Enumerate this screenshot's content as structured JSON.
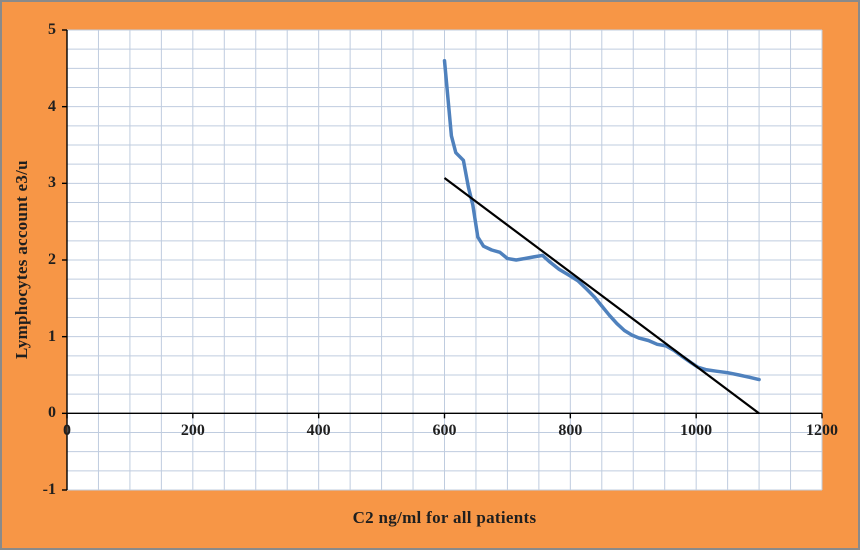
{
  "chart_data": {
    "type": "line",
    "title": "",
    "xlabel": "C2 ng/ml for all patients",
    "ylabel": "Lymphocytes account e3/u",
    "xlim": [
      0,
      1200
    ],
    "ylim": [
      -1,
      5
    ],
    "xticks": [
      0,
      200,
      400,
      600,
      800,
      1000,
      1200
    ],
    "yticks": [
      -1,
      0,
      1,
      2,
      3,
      4,
      5
    ],
    "minor_grid": {
      "x_step": 50,
      "y_step": 0.25
    },
    "grid": true,
    "legend": "none",
    "series": [
      {
        "name": "lymphocytes-count-vs-c2",
        "color": "#4F81BD",
        "width": 3.5,
        "points": [
          [
            600,
            4.6
          ],
          [
            611,
            3.62
          ],
          [
            618,
            3.4
          ],
          [
            630,
            3.3
          ],
          [
            638,
            2.95
          ],
          [
            645,
            2.72
          ],
          [
            653,
            2.3
          ],
          [
            662,
            2.18
          ],
          [
            675,
            2.13
          ],
          [
            688,
            2.1
          ],
          [
            700,
            2.02
          ],
          [
            714,
            2.0
          ],
          [
            728,
            2.02
          ],
          [
            742,
            2.04
          ],
          [
            756,
            2.06
          ],
          [
            768,
            1.97
          ],
          [
            782,
            1.88
          ],
          [
            798,
            1.8
          ],
          [
            812,
            1.73
          ],
          [
            826,
            1.62
          ],
          [
            838,
            1.52
          ],
          [
            850,
            1.4
          ],
          [
            862,
            1.28
          ],
          [
            874,
            1.17
          ],
          [
            886,
            1.08
          ],
          [
            898,
            1.02
          ],
          [
            910,
            0.98
          ],
          [
            924,
            0.95
          ],
          [
            938,
            0.9
          ],
          [
            952,
            0.88
          ],
          [
            965,
            0.82
          ],
          [
            978,
            0.74
          ],
          [
            992,
            0.66
          ],
          [
            1003,
            0.6
          ],
          [
            1015,
            0.57
          ],
          [
            1032,
            0.55
          ],
          [
            1050,
            0.53
          ],
          [
            1068,
            0.5
          ],
          [
            1085,
            0.47
          ],
          [
            1100,
            0.44
          ]
        ]
      }
    ],
    "trendline": {
      "name": "linear-trendline",
      "color": "#000000",
      "width": 2.2,
      "points": [
        [
          600,
          3.07
        ],
        [
          1100,
          0.0
        ]
      ]
    },
    "colors": {
      "background": "#F79646",
      "plot_background": "#FFFFFF",
      "gridline": "#BFCCDF",
      "axis": "#000000",
      "text": "#1F1F1F",
      "border": "#8A8A8A"
    }
  }
}
